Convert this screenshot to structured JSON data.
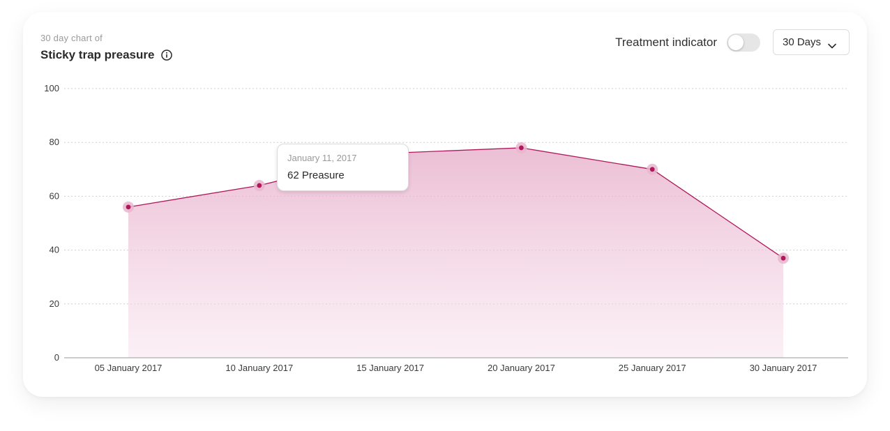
{
  "header": {
    "subtitle": "30 day chart of",
    "title": "Sticky trap preasure",
    "toggle_label": "Treatment indicator",
    "toggle_on": false,
    "range_selected": "30 Days"
  },
  "tooltip": {
    "date": "January 11, 2017",
    "value_text": "62 Preasure"
  },
  "colors": {
    "accent": "#b0185d",
    "marker_halo": "#e9b6ce",
    "fill_top": "#e4a6c4",
    "fill_bottom": "#f8e4ee"
  },
  "chart_data": {
    "type": "area",
    "title": "Sticky trap preasure",
    "xlabel": "",
    "ylabel": "",
    "x": [
      "05 January 2017",
      "10 January 2017",
      "15 January 2017",
      "20 January 2017",
      "25 January 2017",
      "30 January 2017"
    ],
    "series": [
      {
        "values": [
          56,
          64,
          76,
          78,
          70,
          37
        ]
      }
    ],
    "ylim": [
      0,
      100
    ],
    "yticks": [
      0,
      20,
      40,
      60,
      80,
      100
    ],
    "grid": true,
    "legend": "none"
  }
}
